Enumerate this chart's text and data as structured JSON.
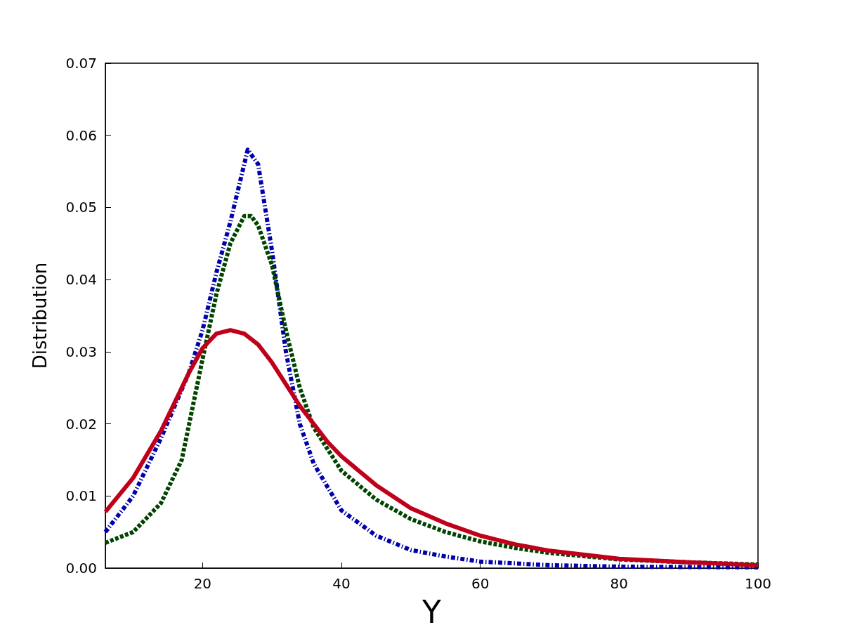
{
  "chart_data": {
    "type": "line",
    "xlabel": "Y",
    "ylabel": "Distribution",
    "xlim": [
      6,
      100
    ],
    "xticks": [
      20,
      40,
      60,
      80,
      100
    ],
    "ylim": [
      0,
      0.07
    ],
    "yticks": [
      {
        "value": 0,
        "label": "0.00"
      },
      {
        "value": 0.01,
        "label": "0.01"
      },
      {
        "value": 0.02,
        "label": "0.02"
      },
      {
        "value": 0.03,
        "label": "0.03"
      },
      {
        "value": 0.04,
        "label": "0.04"
      },
      {
        "value": 0.05,
        "label": "0.05"
      },
      {
        "value": 0.06,
        "label": "0.06"
      },
      {
        "value": 0.07,
        "label": "0.07"
      }
    ],
    "grid": false,
    "marker": "none",
    "series": [
      {
        "color": "#0000aa",
        "line_style": "dashdot",
        "x": [
          6,
          10,
          14,
          18,
          20,
          22,
          24,
          26,
          26.5,
          28,
          30,
          32,
          34,
          36,
          40,
          45,
          50,
          55,
          60,
          70,
          80,
          100
        ],
        "values": [
          0.005,
          0.01,
          0.018,
          0.027,
          0.033,
          0.041,
          0.048,
          0.056,
          0.058,
          0.056,
          0.044,
          0.03,
          0.02,
          0.0145,
          0.008,
          0.0045,
          0.0025,
          0.0016,
          0.0009,
          0.0004,
          0.0002,
          0.0001
        ]
      },
      {
        "color": "#004400",
        "line_style": "dashed",
        "x": [
          6,
          10,
          14,
          17,
          20,
          22,
          24,
          26,
          27,
          28,
          30,
          32,
          34,
          36,
          40,
          45,
          50,
          55,
          60,
          65,
          70,
          80,
          90,
          100
        ],
        "values": [
          0.0035,
          0.005,
          0.009,
          0.015,
          0.029,
          0.038,
          0.045,
          0.0488,
          0.0488,
          0.0475,
          0.042,
          0.033,
          0.025,
          0.0195,
          0.0135,
          0.0095,
          0.0068,
          0.005,
          0.0037,
          0.0028,
          0.0021,
          0.0012,
          0.0008,
          0.0005
        ]
      },
      {
        "color": "#c0001a",
        "line_style": "solid",
        "x": [
          6,
          10,
          14,
          18,
          20,
          22,
          24,
          26,
          28,
          30,
          34,
          38,
          40,
          45,
          50,
          55,
          60,
          65,
          70,
          80,
          90,
          100
        ],
        "values": [
          0.0078,
          0.0125,
          0.019,
          0.027,
          0.0305,
          0.0325,
          0.033,
          0.0325,
          0.031,
          0.0285,
          0.0225,
          0.0175,
          0.0155,
          0.0115,
          0.0083,
          0.0062,
          0.0045,
          0.0033,
          0.0024,
          0.0013,
          0.0008,
          0.0004
        ]
      }
    ]
  }
}
